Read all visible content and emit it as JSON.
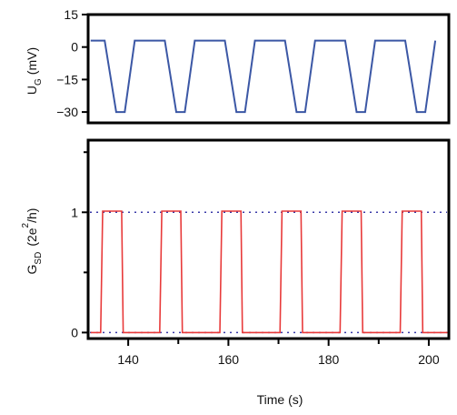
{
  "chart_data": [
    {
      "type": "line",
      "xlabel": "",
      "ylabel": {
        "main": "U",
        "sub": "G",
        "unit": "(mV)"
      },
      "xlim": [
        132,
        204
      ],
      "ylim": [
        -35,
        15
      ],
      "yticks": [
        15,
        0,
        -15,
        -30
      ],
      "ytick_labels": [
        "15",
        "0",
        "−15",
        "−30"
      ],
      "grid": false,
      "series": [
        {
          "color": "#3b57a5",
          "points": [
            [
              132.5,
              3
            ],
            [
              135.3,
              3
            ],
            [
              137.6,
              -30
            ],
            [
              139.3,
              -30
            ],
            [
              141.3,
              3
            ],
            [
              147.3,
              3
            ],
            [
              149.6,
              -30
            ],
            [
              151.3,
              -30
            ],
            [
              153.3,
              3
            ],
            [
              159.3,
              3
            ],
            [
              161.6,
              -30
            ],
            [
              163.3,
              -30
            ],
            [
              165.3,
              3
            ],
            [
              171.3,
              3
            ],
            [
              173.6,
              -30
            ],
            [
              175.3,
              -30
            ],
            [
              177.3,
              3
            ],
            [
              183.3,
              3
            ],
            [
              185.6,
              -30
            ],
            [
              187.3,
              -30
            ],
            [
              189.3,
              3
            ],
            [
              195.3,
              3
            ],
            [
              197.6,
              -30
            ],
            [
              199.3,
              -30
            ],
            [
              201.3,
              3
            ]
          ]
        }
      ]
    },
    {
      "type": "line",
      "xlabel": "Time (s)",
      "ylabel": {
        "main": "G",
        "sub": "SD",
        "unit_open": "(2e",
        "sup": "2",
        "unit_close": "/h)"
      },
      "xlim": [
        132,
        204
      ],
      "ylim": [
        -0.05,
        1.6
      ],
      "xticks": [
        140,
        160,
        180,
        200
      ],
      "xtick_labels": [
        "140",
        "160",
        "180",
        "200"
      ],
      "yticks": [
        0,
        1
      ],
      "ytick_labels": [
        "0",
        "1"
      ],
      "grid": false,
      "reference_lines": [
        {
          "y": 1,
          "color": "#3a3aa8",
          "style": "dotted"
        },
        {
          "y": 0,
          "color": "#3a3aa8",
          "style": "dotted"
        }
      ],
      "series": [
        {
          "color": "#e83a3a",
          "pulses": [
            {
              "rise": 134.5,
              "fall": 139.0
            },
            {
              "rise": 146.3,
              "fall": 150.8
            },
            {
              "rise": 158.3,
              "fall": 162.8
            },
            {
              "rise": 170.3,
              "fall": 174.8
            },
            {
              "rise": 182.3,
              "fall": 186.8
            },
            {
              "rise": 194.3,
              "fall": 198.8
            }
          ],
          "low": 0,
          "high": 1.01,
          "x_start": 132.5,
          "x_end": 204
        }
      ]
    }
  ]
}
